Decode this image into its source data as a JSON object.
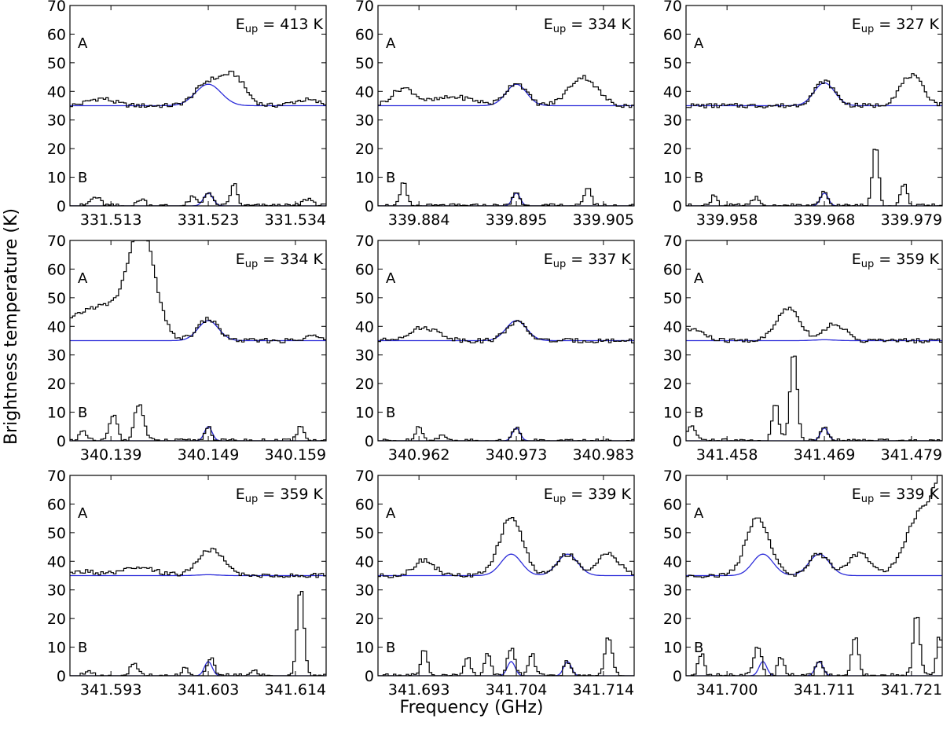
{
  "figure": {
    "ylabel": "Brightness temperature (K)",
    "xlabel": "Frequency (GHz)"
  },
  "chart_data": [
    {
      "type": "line",
      "eup": "E",
      "eup_sub": "up",
      "eup_val": " = 413 K",
      "xticks": [
        "331.513",
        "331.523",
        "331.534"
      ],
      "yticks": [
        "0",
        "10",
        "20",
        "30",
        "40",
        "50",
        "60",
        "70"
      ],
      "ylim": [
        0,
        70
      ],
      "label_a": "A",
      "label_b": "B",
      "baseline_a": 35,
      "baseline_b": 0,
      "model_a": [
        {
          "c": 0.54,
          "amp": 7.5,
          "w": 0.05
        }
      ],
      "model_b": [
        {
          "c": 0.54,
          "amp": 4.5,
          "w": 0.018
        }
      ],
      "obs_a": [
        {
          "c": 0.54,
          "amp": 8,
          "w": 0.05
        },
        {
          "c": 0.64,
          "amp": 10,
          "w": 0.045
        },
        {
          "c": 0.12,
          "amp": 2.5,
          "w": 0.05
        },
        {
          "c": 0.92,
          "amp": 2,
          "w": 0.05
        }
      ],
      "obs_b": [
        {
          "c": 0.54,
          "amp": 5,
          "w": 0.015
        },
        {
          "c": 0.64,
          "amp": 8,
          "w": 0.012
        },
        {
          "c": 0.1,
          "amp": 3,
          "w": 0.02
        },
        {
          "c": 0.28,
          "amp": 2.5,
          "w": 0.015
        },
        {
          "c": 0.48,
          "amp": 3,
          "w": 0.015
        },
        {
          "c": 0.93,
          "amp": 2.5,
          "w": 0.02
        }
      ]
    },
    {
      "type": "line",
      "eup": "E",
      "eup_sub": "up",
      "eup_val": " = 334 K",
      "xticks": [
        "339.884",
        "339.895",
        "339.905"
      ],
      "yticks": [
        "0",
        "10",
        "20",
        "30",
        "40",
        "50",
        "60",
        "70"
      ],
      "ylim": [
        0,
        70
      ],
      "label_a": "A",
      "label_b": "B",
      "baseline_a": 35,
      "baseline_b": 0,
      "model_a": [
        {
          "c": 0.54,
          "amp": 7.5,
          "w": 0.04
        }
      ],
      "model_b": [
        {
          "c": 0.54,
          "amp": 4.5,
          "w": 0.015
        }
      ],
      "obs_a": [
        {
          "c": 0.54,
          "amp": 8,
          "w": 0.04
        },
        {
          "c": 0.8,
          "amp": 10,
          "w": 0.055
        },
        {
          "c": 0.1,
          "amp": 6,
          "w": 0.045
        },
        {
          "c": 0.3,
          "amp": 3,
          "w": 0.08
        }
      ],
      "obs_b": [
        {
          "c": 0.54,
          "amp": 5,
          "w": 0.013
        },
        {
          "c": 0.1,
          "amp": 8,
          "w": 0.012
        },
        {
          "c": 0.82,
          "amp": 7,
          "w": 0.012
        }
      ]
    },
    {
      "type": "line",
      "eup": "E",
      "eup_sub": "up",
      "eup_val": " = 327 K",
      "xticks": [
        "339.958",
        "339.968",
        "339.979"
      ],
      "yticks": [
        "0",
        "10",
        "20",
        "30",
        "40",
        "50",
        "60",
        "70"
      ],
      "ylim": [
        0,
        70
      ],
      "label_a": "A",
      "label_b": "B",
      "baseline_a": 35,
      "baseline_b": 0,
      "model_a": [
        {
          "c": 0.54,
          "amp": 8,
          "w": 0.04
        }
      ],
      "model_b": [
        {
          "c": 0.54,
          "amp": 4.5,
          "w": 0.015
        }
      ],
      "obs_a": [
        {
          "c": 0.54,
          "amp": 8.5,
          "w": 0.04
        },
        {
          "c": 0.88,
          "amp": 10.5,
          "w": 0.045
        }
      ],
      "obs_b": [
        {
          "c": 0.54,
          "amp": 5,
          "w": 0.013
        },
        {
          "c": 0.74,
          "amp": 22,
          "w": 0.012
        },
        {
          "c": 0.85,
          "amp": 8,
          "w": 0.012
        },
        {
          "c": 0.11,
          "amp": 4,
          "w": 0.012
        },
        {
          "c": 0.27,
          "amp": 3,
          "w": 0.012
        }
      ]
    },
    {
      "type": "line",
      "eup": "E",
      "eup_sub": "up",
      "eup_val": " = 334 K",
      "xticks": [
        "340.139",
        "340.149",
        "340.159"
      ],
      "yticks": [
        "0",
        "10",
        "20",
        "30",
        "40",
        "50",
        "60",
        "70"
      ],
      "ylim": [
        0,
        70
      ],
      "label_a": "A",
      "label_b": "B",
      "baseline_a": 35,
      "baseline_b": 0,
      "model_a": [
        {
          "c": 0.54,
          "amp": 7,
          "w": 0.04
        }
      ],
      "model_b": [
        {
          "c": 0.54,
          "amp": 5,
          "w": 0.015
        }
      ],
      "obs_a": [
        {
          "c": 0.54,
          "amp": 7.5,
          "w": 0.04
        },
        {
          "c": 0.28,
          "amp": 35,
          "w": 0.05
        },
        {
          "c": 0.12,
          "amp": 12,
          "w": 0.12
        },
        {
          "c": 0.96,
          "amp": 2,
          "w": 0.03
        }
      ],
      "obs_b": [
        {
          "c": 0.54,
          "amp": 5,
          "w": 0.013
        },
        {
          "c": 0.17,
          "amp": 9,
          "w": 0.015
        },
        {
          "c": 0.27,
          "amp": 13,
          "w": 0.018
        },
        {
          "c": 0.05,
          "amp": 3,
          "w": 0.015
        },
        {
          "c": 0.9,
          "amp": 6,
          "w": 0.012
        }
      ]
    },
    {
      "type": "line",
      "eup": "E",
      "eup_sub": "up",
      "eup_val": " = 337 K",
      "xticks": [
        "340.962",
        "340.973",
        "340.983"
      ],
      "yticks": [
        "0",
        "10",
        "20",
        "30",
        "40",
        "50",
        "60",
        "70"
      ],
      "ylim": [
        0,
        70
      ],
      "label_a": "A",
      "label_b": "B",
      "baseline_a": 35,
      "baseline_b": 0,
      "model_a": [
        {
          "c": 0.54,
          "amp": 7,
          "w": 0.04
        }
      ],
      "model_b": [
        {
          "c": 0.54,
          "amp": 4.5,
          "w": 0.015
        }
      ],
      "obs_a": [
        {
          "c": 0.54,
          "amp": 6.5,
          "w": 0.04
        },
        {
          "c": 0.18,
          "amp": 4.5,
          "w": 0.06
        }
      ],
      "obs_b": [
        {
          "c": 0.54,
          "amp": 5,
          "w": 0.013
        },
        {
          "c": 0.16,
          "amp": 5,
          "w": 0.015
        },
        {
          "c": 0.25,
          "amp": 2,
          "w": 0.015
        }
      ]
    },
    {
      "type": "line",
      "eup": "E",
      "eup_sub": "up",
      "eup_val": " = 359 K",
      "xticks": [
        "341.458",
        "341.469",
        "341.479"
      ],
      "yticks": [
        "0",
        "10",
        "20",
        "30",
        "40",
        "50",
        "60",
        "70"
      ],
      "ylim": [
        0,
        70
      ],
      "label_a": "A",
      "label_b": "B",
      "baseline_a": 35,
      "baseline_b": 0,
      "model_a": [
        {
          "c": 0.54,
          "amp": 0.3,
          "w": 0.04
        }
      ],
      "model_b": [
        {
          "c": 0.54,
          "amp": 4.5,
          "w": 0.015
        }
      ],
      "obs_a": [
        {
          "c": 0.4,
          "amp": 11.5,
          "w": 0.045
        },
        {
          "c": 0.58,
          "amp": 6,
          "w": 0.04
        },
        {
          "c": 0.03,
          "amp": 4,
          "w": 0.04
        }
      ],
      "obs_b": [
        {
          "c": 0.54,
          "amp": 5,
          "w": 0.013
        },
        {
          "c": 0.35,
          "amp": 14,
          "w": 0.012
        },
        {
          "c": 0.42,
          "amp": 31,
          "w": 0.014
        },
        {
          "c": 0.02,
          "amp": 5,
          "w": 0.015
        }
      ]
    },
    {
      "type": "line",
      "eup": "E",
      "eup_sub": "up",
      "eup_val": " = 359 K",
      "xticks": [
        "341.593",
        "341.603",
        "341.614"
      ],
      "yticks": [
        "0",
        "10",
        "20",
        "30",
        "40",
        "50",
        "60",
        "70"
      ],
      "ylim": [
        0,
        70
      ],
      "label_a": "A",
      "label_b": "B",
      "baseline_a": 35,
      "baseline_b": 0,
      "model_a": [
        {
          "c": 0.54,
          "amp": 0.3,
          "w": 0.04
        }
      ],
      "model_b": [
        {
          "c": 0.54,
          "amp": 5,
          "w": 0.015
        }
      ],
      "obs_a": [
        {
          "c": 0.55,
          "amp": 9,
          "w": 0.05
        },
        {
          "c": 0.27,
          "amp": 2.5,
          "w": 0.07
        },
        {
          "c": 0.06,
          "amp": 1.5,
          "w": 0.04
        }
      ],
      "obs_b": [
        {
          "c": 0.55,
          "amp": 6,
          "w": 0.014
        },
        {
          "c": 0.9,
          "amp": 31,
          "w": 0.013
        },
        {
          "c": 0.25,
          "amp": 4,
          "w": 0.015
        },
        {
          "c": 0.07,
          "amp": 2,
          "w": 0.015
        },
        {
          "c": 0.45,
          "amp": 3,
          "w": 0.012
        },
        {
          "c": 0.72,
          "amp": 2,
          "w": 0.012
        }
      ]
    },
    {
      "type": "line",
      "eup": "E",
      "eup_sub": "up",
      "eup_val": " = 339 K",
      "xticks": [
        "341.693",
        "341.704",
        "341.714"
      ],
      "yticks": [
        "0",
        "10",
        "20",
        "30",
        "40",
        "50",
        "60",
        "70"
      ],
      "ylim": [
        0,
        70
      ],
      "label_a": "A",
      "label_b": "B",
      "baseline_a": 35,
      "baseline_b": 0,
      "model_a": [
        {
          "c": 0.52,
          "amp": 7.5,
          "w": 0.04
        },
        {
          "c": 0.74,
          "amp": 7.5,
          "w": 0.04
        }
      ],
      "model_b": [
        {
          "c": 0.52,
          "amp": 5,
          "w": 0.015
        },
        {
          "c": 0.74,
          "amp": 5,
          "w": 0.015
        }
      ],
      "obs_a": [
        {
          "c": 0.52,
          "amp": 20.5,
          "w": 0.045
        },
        {
          "c": 0.74,
          "amp": 7.5,
          "w": 0.04
        },
        {
          "c": 0.18,
          "amp": 5.5,
          "w": 0.04
        },
        {
          "c": 0.9,
          "amp": 8,
          "w": 0.04
        }
      ],
      "obs_b": [
        {
          "c": 0.52,
          "amp": 10,
          "w": 0.015
        },
        {
          "c": 0.74,
          "amp": 5,
          "w": 0.013
        },
        {
          "c": 0.18,
          "amp": 9,
          "w": 0.013
        },
        {
          "c": 0.35,
          "amp": 7,
          "w": 0.012
        },
        {
          "c": 0.43,
          "amp": 8,
          "w": 0.012
        },
        {
          "c": 0.6,
          "amp": 8,
          "w": 0.012
        },
        {
          "c": 0.9,
          "amp": 14,
          "w": 0.014
        }
      ]
    },
    {
      "type": "line",
      "eup": "E",
      "eup_sub": "up",
      "eup_val": " = 339 K",
      "xticks": [
        "341.700",
        "341.711",
        "341.721"
      ],
      "yticks": [
        "0",
        "10",
        "20",
        "30",
        "40",
        "50",
        "60",
        "70"
      ],
      "ylim": [
        0,
        70
      ],
      "label_a": "A",
      "label_b": "B",
      "baseline_a": 35,
      "baseline_b": 0,
      "model_a": [
        {
          "c": 0.3,
          "amp": 7.5,
          "w": 0.04
        },
        {
          "c": 0.52,
          "amp": 7.5,
          "w": 0.04
        }
      ],
      "model_b": [
        {
          "c": 0.3,
          "amp": 5,
          "w": 0.015
        },
        {
          "c": 0.52,
          "amp": 5,
          "w": 0.015
        }
      ],
      "obs_a": [
        {
          "c": 0.28,
          "amp": 20.5,
          "w": 0.045
        },
        {
          "c": 0.52,
          "amp": 7.5,
          "w": 0.04
        },
        {
          "c": 0.68,
          "amp": 8,
          "w": 0.04
        },
        {
          "c": 0.92,
          "amp": 22,
          "w": 0.06
        },
        {
          "c": 1.02,
          "amp": 35,
          "w": 0.04
        }
      ],
      "obs_b": [
        {
          "c": 0.28,
          "amp": 10,
          "w": 0.015
        },
        {
          "c": 0.52,
          "amp": 5,
          "w": 0.013
        },
        {
          "c": 0.06,
          "amp": 8,
          "w": 0.012
        },
        {
          "c": 0.37,
          "amp": 7,
          "w": 0.012
        },
        {
          "c": 0.66,
          "amp": 14,
          "w": 0.013
        },
        {
          "c": 0.9,
          "amp": 22,
          "w": 0.013
        },
        {
          "c": 0.99,
          "amp": 14,
          "w": 0.012
        }
      ]
    }
  ]
}
